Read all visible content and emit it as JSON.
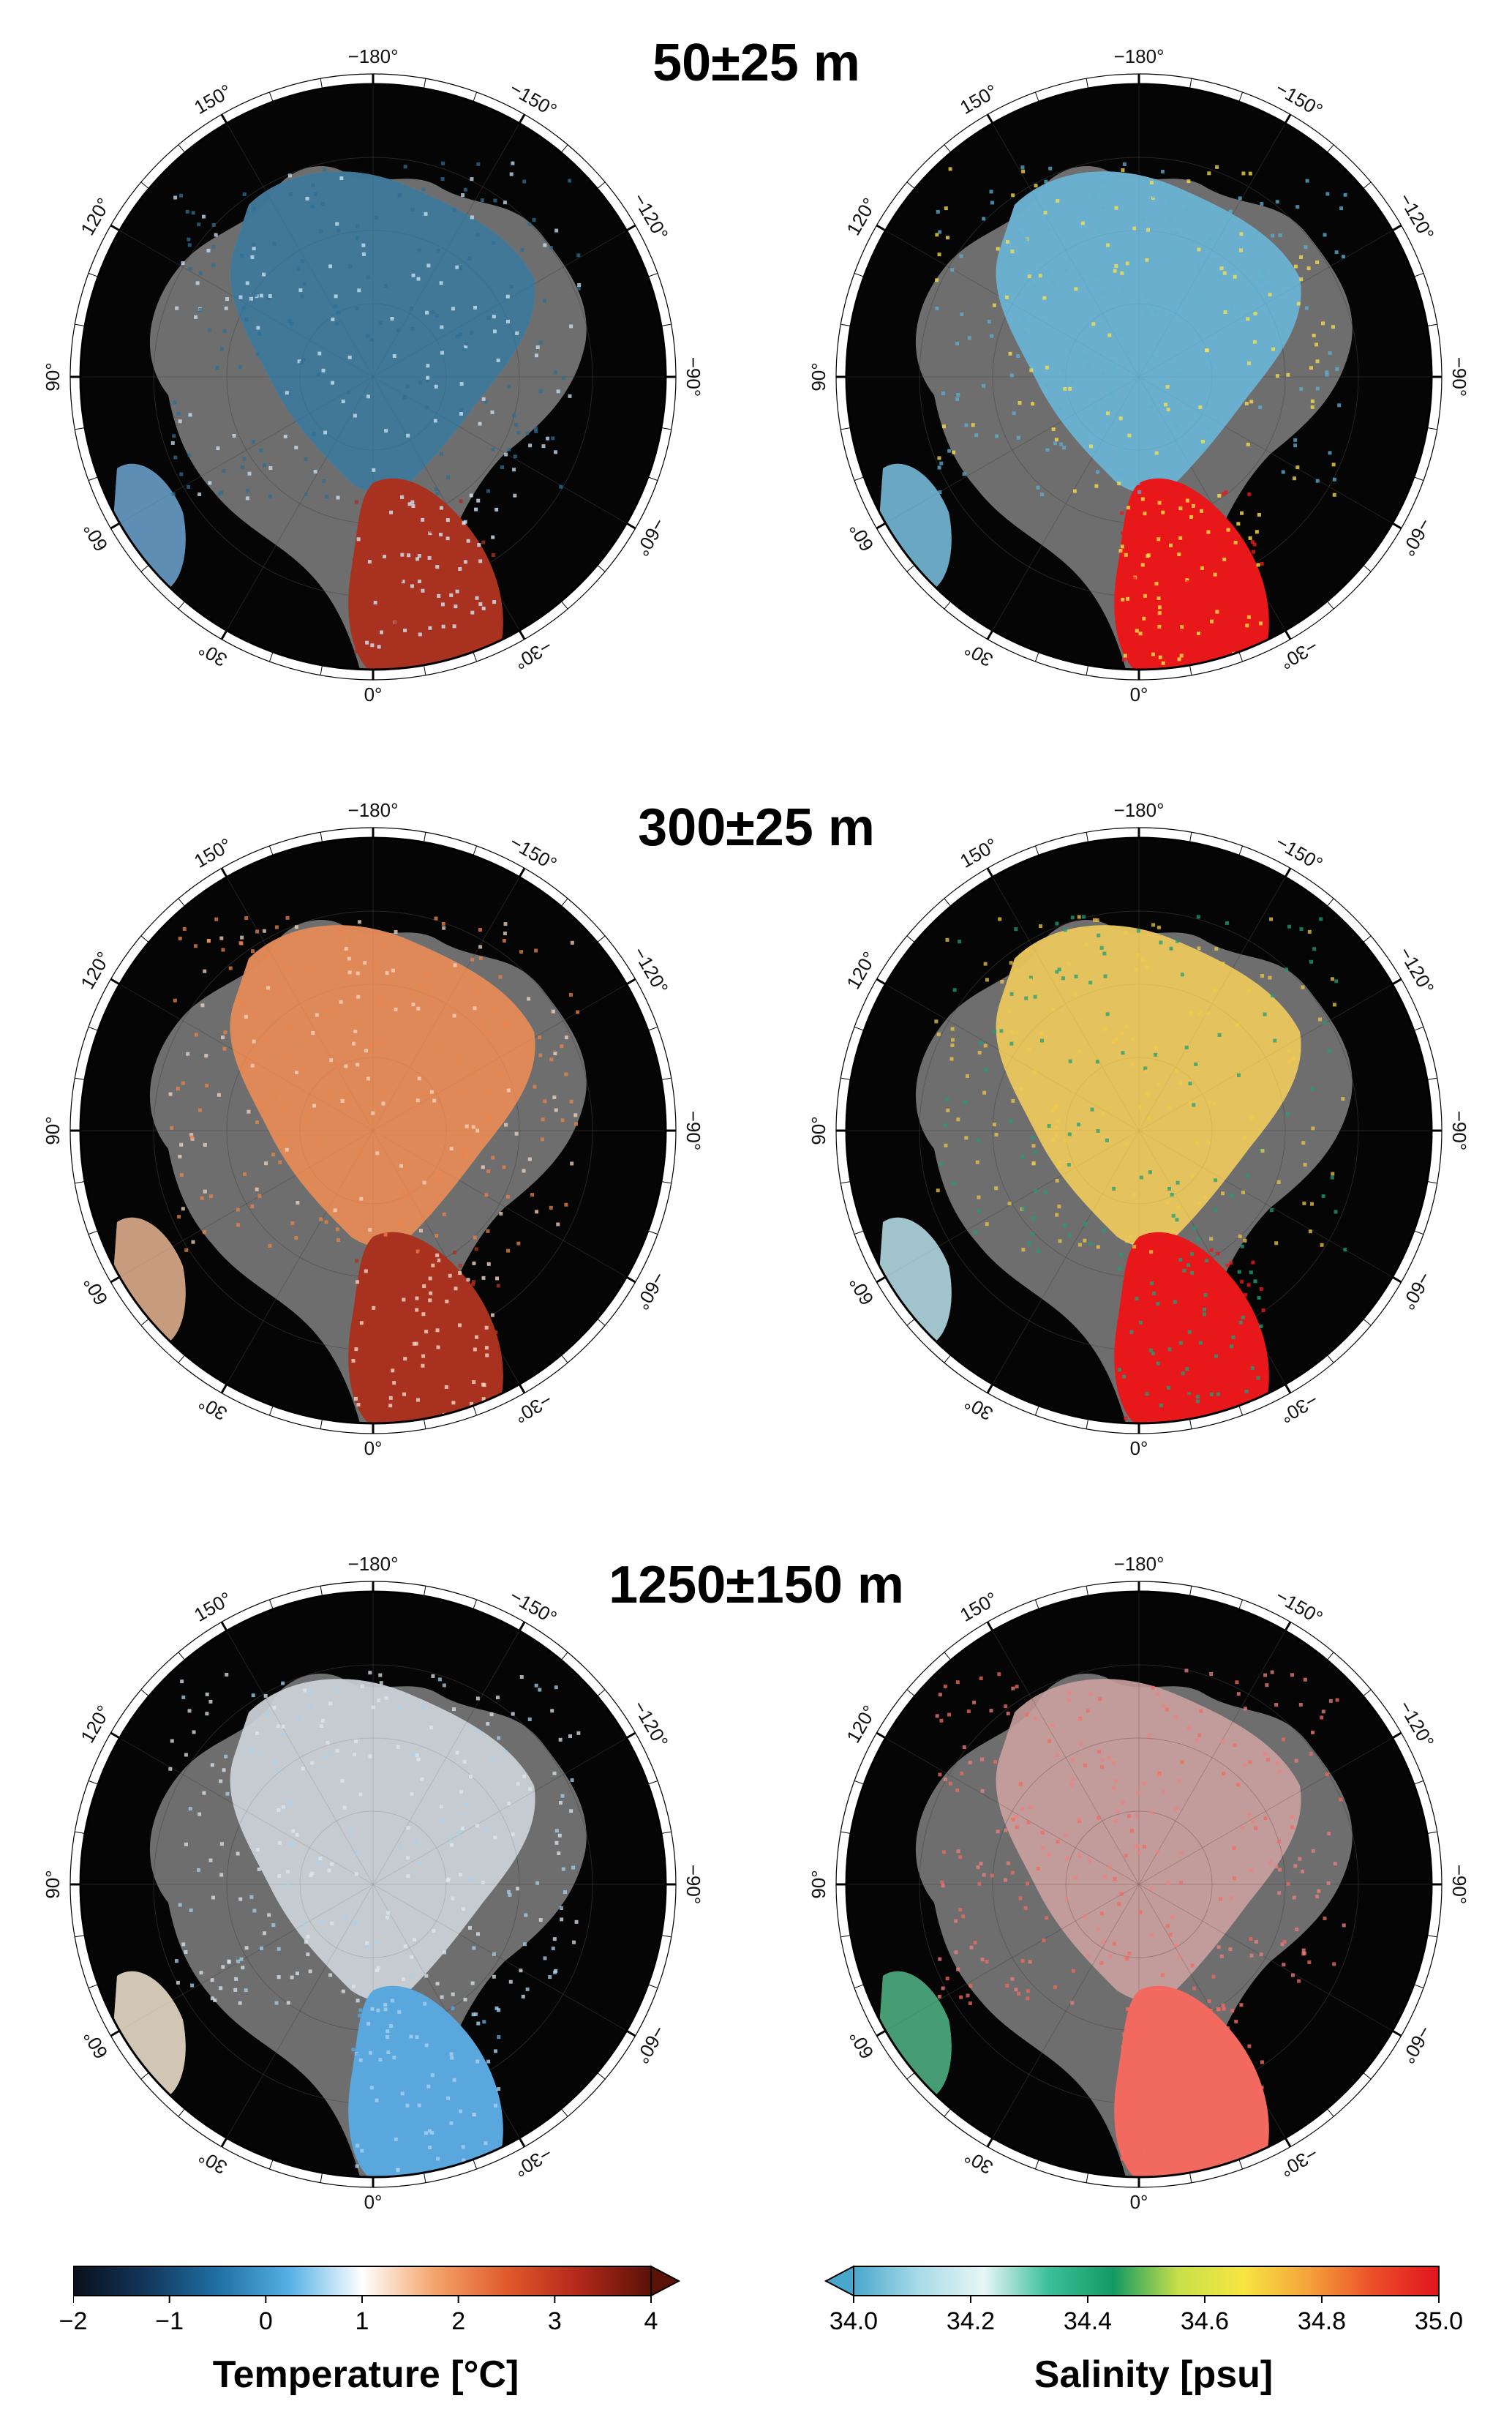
{
  "rows": [
    {
      "depth_label": "50±25 m"
    },
    {
      "depth_label": "300±25 m"
    },
    {
      "depth_label": "1250±150 m"
    }
  ],
  "longitude_labels": [
    {
      "deg": 0,
      "text": "0°"
    },
    {
      "deg": 30,
      "text": "30°"
    },
    {
      "deg": 60,
      "text": "60°"
    },
    {
      "deg": 90,
      "text": "90°"
    },
    {
      "deg": 120,
      "text": "120°"
    },
    {
      "deg": 150,
      "text": "150°"
    },
    {
      "deg": 180,
      "text": "−180°"
    },
    {
      "deg": 210,
      "text": "−150°"
    },
    {
      "deg": 240,
      "text": "−120°"
    },
    {
      "deg": 270,
      "text": "−90°"
    },
    {
      "deg": 300,
      "text": "−60°"
    },
    {
      "deg": 330,
      "text": "−30°"
    }
  ],
  "panels": [
    {
      "row": 0,
      "variable": "temperature",
      "arctic_color": "#2f6e94",
      "arctic_opacity": 0.85,
      "atlantic_color": "#a8321f",
      "accent_color": "#cfe6f5",
      "shelf_color": "#4f8fc0"
    },
    {
      "row": 0,
      "variable": "salinity",
      "arctic_color": "#5fb0d4",
      "arctic_opacity": 0.85,
      "atlantic_color": "#e8181a",
      "accent_color": "#ffe24a",
      "shelf_color": "#5fb0d4"
    },
    {
      "row": 1,
      "variable": "temperature",
      "arctic_color": "#e9844a",
      "arctic_opacity": 0.85,
      "atlantic_color": "#a8321f",
      "accent_color": "#f3d7c4",
      "shelf_color": "#d9a07a"
    },
    {
      "row": 1,
      "variable": "salinity",
      "arctic_color": "#f2c84a",
      "arctic_opacity": 0.8,
      "atlantic_color": "#e8181a",
      "accent_color": "#1f9e77",
      "shelf_color": "#a8d6e0"
    },
    {
      "row": 2,
      "variable": "temperature",
      "arctic_color": "#dce8f0",
      "arctic_opacity": 0.55,
      "atlantic_color": "#5aa7dd",
      "accent_color": "#a8d2ee",
      "shelf_color": "#e8d8c2"
    },
    {
      "row": 2,
      "variable": "salinity",
      "arctic_color": "#f08080",
      "arctic_opacity": 0.35,
      "atlantic_color": "#f26a5f",
      "accent_color": "#f26a5f",
      "shelf_color": "#2fa36b"
    }
  ],
  "colorbars": [
    {
      "title": "Temperature [°C]",
      "range": [
        -2,
        4
      ],
      "ticks": [
        {
          "value": -2,
          "label": "−2"
        },
        {
          "value": -1,
          "label": "−1"
        },
        {
          "value": 0,
          "label": "0"
        },
        {
          "value": 1,
          "label": "1"
        },
        {
          "value": 2,
          "label": "2"
        },
        {
          "value": 3,
          "label": "3"
        },
        {
          "value": 4,
          "label": "4"
        }
      ],
      "extend": "max",
      "stops": [
        "#0a0f1c",
        "#13365a",
        "#1f6fa3",
        "#56b1e6",
        "#ffffff",
        "#f4a46c",
        "#e05a2b",
        "#b3271b",
        "#5a1208"
      ],
      "extend_color": "#5a1208"
    },
    {
      "title": "Salinity [psu]",
      "range": [
        34.0,
        35.0
      ],
      "ticks": [
        {
          "value": 34.0,
          "label": "34.0"
        },
        {
          "value": 34.2,
          "label": "34.2"
        },
        {
          "value": 34.4,
          "label": "34.4"
        },
        {
          "value": 34.6,
          "label": "34.6"
        },
        {
          "value": 34.8,
          "label": "34.8"
        },
        {
          "value": 35.0,
          "label": "35.0"
        }
      ],
      "extend": "min",
      "stops": [
        "#4aa7cc",
        "#a7dbe8",
        "#e7f6f6",
        "#3bbf9a",
        "#139a63",
        "#c8e04a",
        "#f7e541",
        "#f5a23a",
        "#ec4e2a",
        "#e0141c"
      ],
      "extend_color": "#4aa7cc"
    }
  ]
}
